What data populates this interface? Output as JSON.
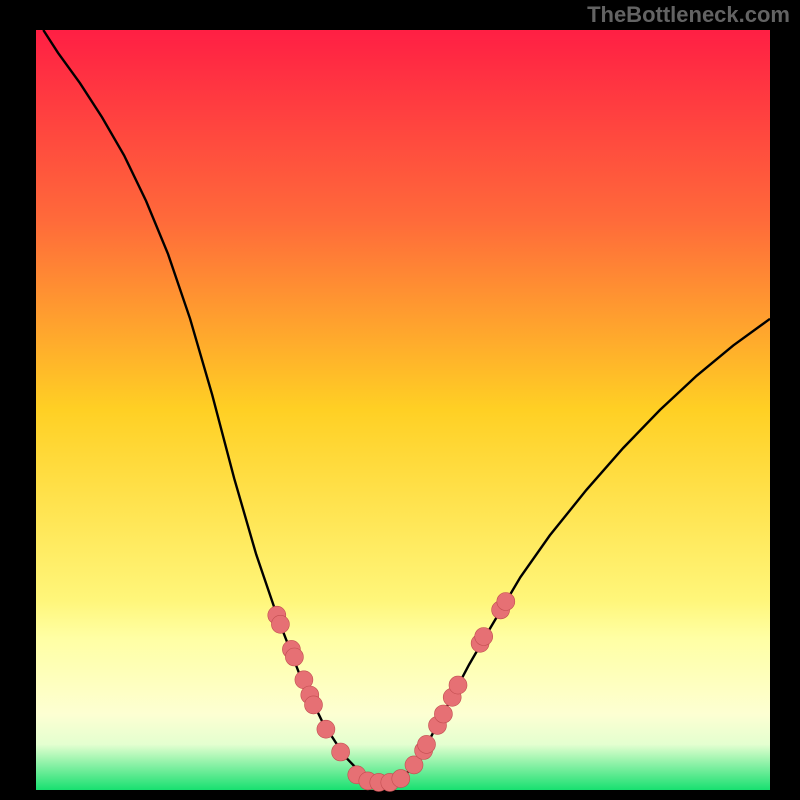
{
  "watermark": {
    "text": "TheBottleneck.com"
  },
  "frame": {
    "outer_w": 800,
    "outer_h": 800,
    "inner_x": 36,
    "inner_y": 30,
    "inner_w": 734,
    "inner_h": 760,
    "background_color": "#000000"
  },
  "gradient": {
    "stops": [
      {
        "pct": 0,
        "hex": "#ff1f44"
      },
      {
        "pct": 25,
        "hex": "#ff6a3a"
      },
      {
        "pct": 50,
        "hex": "#ffd024"
      },
      {
        "pct": 75,
        "hex": "#fff67a"
      },
      {
        "pct": 80,
        "hex": "#ffffa4"
      },
      {
        "pct": 90,
        "hex": "#fdffd2"
      },
      {
        "pct": 94,
        "hex": "#e4ffd0"
      },
      {
        "pct": 100,
        "hex": "#18e070"
      }
    ]
  },
  "chart": {
    "type": "line-with-markers",
    "curve_color": "#000000",
    "curve_width": 2.4,
    "x_range": [
      0,
      1
    ],
    "y_range": [
      0,
      1
    ],
    "curve": [
      {
        "x": 0.01,
        "y": 1.0
      },
      {
        "x": 0.03,
        "y": 0.97
      },
      {
        "x": 0.06,
        "y": 0.93
      },
      {
        "x": 0.09,
        "y": 0.885
      },
      {
        "x": 0.12,
        "y": 0.835
      },
      {
        "x": 0.15,
        "y": 0.775
      },
      {
        "x": 0.18,
        "y": 0.705
      },
      {
        "x": 0.21,
        "y": 0.62
      },
      {
        "x": 0.24,
        "y": 0.52
      },
      {
        "x": 0.27,
        "y": 0.41
      },
      {
        "x": 0.3,
        "y": 0.31
      },
      {
        "x": 0.33,
        "y": 0.225
      },
      {
        "x": 0.36,
        "y": 0.15
      },
      {
        "x": 0.39,
        "y": 0.09
      },
      {
        "x": 0.42,
        "y": 0.045
      },
      {
        "x": 0.45,
        "y": 0.015
      },
      {
        "x": 0.475,
        "y": 0.008
      },
      {
        "x": 0.5,
        "y": 0.015
      },
      {
        "x": 0.53,
        "y": 0.055
      },
      {
        "x": 0.56,
        "y": 0.11
      },
      {
        "x": 0.59,
        "y": 0.165
      },
      {
        "x": 0.62,
        "y": 0.215
      },
      {
        "x": 0.66,
        "y": 0.28
      },
      {
        "x": 0.7,
        "y": 0.335
      },
      {
        "x": 0.75,
        "y": 0.395
      },
      {
        "x": 0.8,
        "y": 0.45
      },
      {
        "x": 0.85,
        "y": 0.5
      },
      {
        "x": 0.9,
        "y": 0.545
      },
      {
        "x": 0.95,
        "y": 0.585
      },
      {
        "x": 1.0,
        "y": 0.62
      }
    ],
    "markers": {
      "fill": "#e67074",
      "stroke": "#c24d50",
      "stroke_width": 0.6,
      "radius": 9,
      "points": [
        {
          "x": 0.328,
          "y": 0.23
        },
        {
          "x": 0.333,
          "y": 0.218
        },
        {
          "x": 0.348,
          "y": 0.185
        },
        {
          "x": 0.352,
          "y": 0.175
        },
        {
          "x": 0.365,
          "y": 0.145
        },
        {
          "x": 0.373,
          "y": 0.125
        },
        {
          "x": 0.378,
          "y": 0.112
        },
        {
          "x": 0.395,
          "y": 0.08
        },
        {
          "x": 0.415,
          "y": 0.05
        },
        {
          "x": 0.437,
          "y": 0.02
        },
        {
          "x": 0.452,
          "y": 0.012
        },
        {
          "x": 0.467,
          "y": 0.01
        },
        {
          "x": 0.482,
          "y": 0.01
        },
        {
          "x": 0.497,
          "y": 0.015
        },
        {
          "x": 0.515,
          "y": 0.033
        },
        {
          "x": 0.528,
          "y": 0.052
        },
        {
          "x": 0.532,
          "y": 0.06
        },
        {
          "x": 0.547,
          "y": 0.085
        },
        {
          "x": 0.555,
          "y": 0.1
        },
        {
          "x": 0.567,
          "y": 0.122
        },
        {
          "x": 0.575,
          "y": 0.138
        },
        {
          "x": 0.605,
          "y": 0.193
        },
        {
          "x": 0.61,
          "y": 0.202
        },
        {
          "x": 0.633,
          "y": 0.237
        },
        {
          "x": 0.64,
          "y": 0.248
        }
      ]
    }
  }
}
